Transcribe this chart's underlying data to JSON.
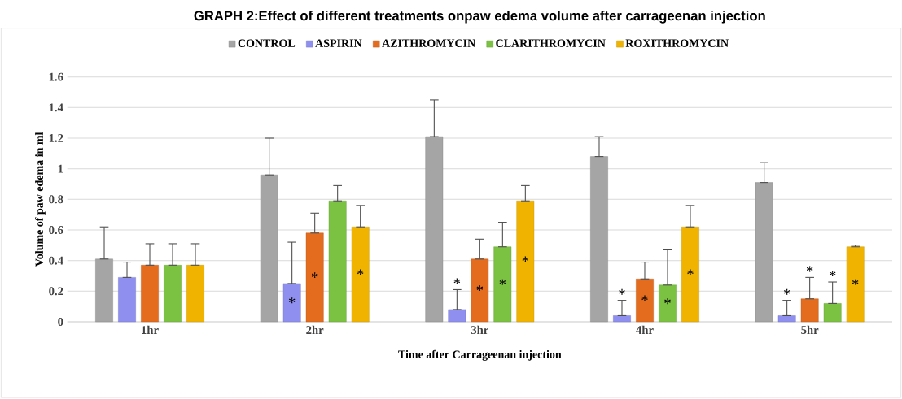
{
  "chart_data": {
    "type": "bar",
    "title": "GRAPH 2:Effect of different treatments onpaw edema volume after carrageenan injection",
    "xlabel": "Time after Carrageenan injection",
    "ylabel": "Volume of paw edema in ml",
    "categories": [
      "1hr",
      "2hr",
      "3hr",
      "4hr",
      "5hr"
    ],
    "series": [
      {
        "name": "CONTROL",
        "color": "#a5a5a5",
        "values": [
          0.41,
          0.96,
          1.21,
          1.08,
          0.91
        ],
        "errors": [
          [
            0.41,
            0.62
          ],
          [
            0.96,
            1.2
          ],
          [
            1.21,
            1.45
          ],
          [
            1.08,
            1.21
          ],
          [
            0.91,
            1.04
          ]
        ]
      },
      {
        "name": "ASPIRIN",
        "color": "#8f8fef",
        "values": [
          0.29,
          0.25,
          0.08,
          0.04,
          0.04
        ],
        "errors": [
          [
            0.29,
            0.39
          ],
          [
            0.25,
            0.52
          ],
          [
            0.08,
            0.21
          ],
          [
            0.04,
            0.14
          ],
          [
            0.04,
            0.14
          ]
        ],
        "value_labels": [
          null,
          "*",
          "*",
          "*",
          "*"
        ]
      },
      {
        "name": "AZITHROMYCIN",
        "color": "#e46c1e",
        "values": [
          0.37,
          0.58,
          0.41,
          0.28,
          0.15
        ],
        "errors": [
          [
            0.37,
            0.51
          ],
          [
            0.58,
            0.71
          ],
          [
            0.41,
            0.54
          ],
          [
            0.28,
            0.39
          ],
          [
            0.15,
            0.29
          ]
        ],
        "value_labels": [
          null,
          "*",
          "*",
          "*",
          "*"
        ]
      },
      {
        "name": "CLARITHROMYCIN",
        "color": "#7cc242",
        "values": [
          0.37,
          0.79,
          0.49,
          0.24,
          0.12
        ],
        "errors": [
          [
            0.37,
            0.51
          ],
          [
            0.79,
            0.89
          ],
          [
            0.49,
            0.65
          ],
          [
            0.24,
            0.47
          ],
          [
            0.12,
            0.26
          ]
        ],
        "value_labels": [
          null,
          null,
          "*",
          "*",
          "*"
        ]
      },
      {
        "name": "ROXITHROMYCIN",
        "color": "#f0b400",
        "values": [
          0.37,
          0.62,
          0.79,
          0.62,
          0.49
        ],
        "errors": [
          [
            0.37,
            0.51
          ],
          [
            0.62,
            0.76
          ],
          [
            0.79,
            0.89
          ],
          [
            0.62,
            0.76
          ],
          [
            0.49,
            0.5
          ]
        ],
        "value_labels": [
          null,
          "*",
          "*",
          "*",
          "*"
        ]
      }
    ],
    "ylim": [
      0,
      1.6
    ],
    "yticks": [
      0,
      0.2,
      0.4,
      0.6,
      0.8,
      1,
      1.2,
      1.4,
      1.6
    ],
    "grid": "y",
    "legend": "top"
  }
}
